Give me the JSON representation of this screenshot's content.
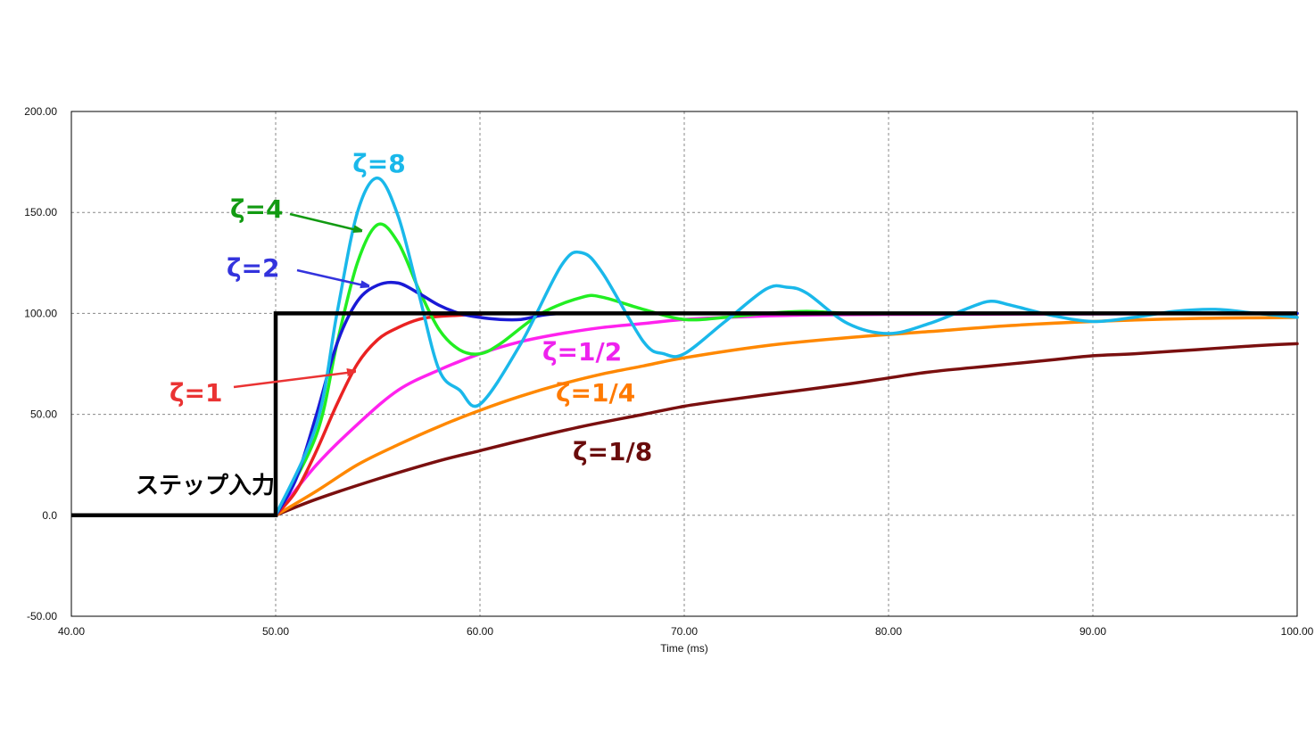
{
  "chart_data": {
    "type": "line",
    "title": "",
    "xlabel": "Time (ms)",
    "ylabel": "",
    "xlim": [
      40,
      100
    ],
    "ylim": [
      -50,
      200
    ],
    "x_ticks": [
      "40.00",
      "50.00",
      "60.00",
      "70.00",
      "80.00",
      "90.00",
      "100.00"
    ],
    "y_ticks": [
      "200.00",
      "150.00",
      "100.00",
      "50.00",
      "0.0",
      "-50.00"
    ],
    "grid": true,
    "step_input": {
      "label": "ステップ入力",
      "color": "#000000",
      "points": [
        [
          40,
          0
        ],
        [
          50,
          0
        ],
        [
          50,
          100
        ],
        [
          100,
          100
        ]
      ]
    },
    "series": [
      {
        "name": "ζ=8",
        "color": "#1ab8ea",
        "points": [
          [
            50,
            0
          ],
          [
            52,
            45
          ],
          [
            53,
            100
          ],
          [
            54,
            150
          ],
          [
            55,
            167
          ],
          [
            56,
            148
          ],
          [
            57,
            110
          ],
          [
            58,
            72
          ],
          [
            59,
            62
          ],
          [
            60,
            55
          ],
          [
            62,
            85
          ],
          [
            64,
            124
          ],
          [
            65,
            130
          ],
          [
            66,
            120
          ],
          [
            68,
            86
          ],
          [
            69,
            80
          ],
          [
            70,
            80
          ],
          [
            72,
            96
          ],
          [
            74,
            112
          ],
          [
            75,
            113
          ],
          [
            76,
            110
          ],
          [
            78,
            95
          ],
          [
            80,
            90
          ],
          [
            82,
            95
          ],
          [
            84,
            103
          ],
          [
            85,
            106
          ],
          [
            86,
            104
          ],
          [
            88,
            99
          ],
          [
            90,
            96
          ],
          [
            92,
            98
          ],
          [
            94,
            101
          ],
          [
            96,
            102
          ],
          [
            98,
            100
          ],
          [
            100,
            98
          ]
        ]
      },
      {
        "name": "ζ=4",
        "color": "#22ee22",
        "points": [
          [
            50,
            0
          ],
          [
            52,
            40
          ],
          [
            53,
            85
          ],
          [
            54,
            125
          ],
          [
            55,
            144
          ],
          [
            56,
            135
          ],
          [
            57,
            112
          ],
          [
            58,
            92
          ],
          [
            59,
            82
          ],
          [
            60,
            80
          ],
          [
            61,
            85
          ],
          [
            63,
            100
          ],
          [
            65,
            108
          ],
          [
            66,
            108
          ],
          [
            68,
            102
          ],
          [
            70,
            97
          ],
          [
            72,
            98
          ],
          [
            74,
            100
          ],
          [
            76,
            101
          ],
          [
            78,
            100
          ],
          [
            80,
            100
          ],
          [
            100,
            100
          ]
        ]
      },
      {
        "name": "ζ=2",
        "color": "#1a1ad6",
        "points": [
          [
            50,
            0
          ],
          [
            51,
            18
          ],
          [
            52,
            50
          ],
          [
            53,
            85
          ],
          [
            54,
            106
          ],
          [
            55,
            114
          ],
          [
            56,
            115
          ],
          [
            57,
            110
          ],
          [
            58,
            104
          ],
          [
            59,
            100
          ],
          [
            60,
            98
          ],
          [
            61,
            97
          ],
          [
            62,
            97
          ],
          [
            63,
            99
          ],
          [
            64,
            100
          ],
          [
            65,
            100
          ],
          [
            100,
            100
          ]
        ]
      },
      {
        "name": "ζ=1",
        "color": "#ea2222",
        "points": [
          [
            50,
            0
          ],
          [
            51,
            12
          ],
          [
            52,
            32
          ],
          [
            53,
            55
          ],
          [
            54,
            75
          ],
          [
            55,
            87
          ],
          [
            56,
            93
          ],
          [
            57,
            97
          ],
          [
            58,
            98.5
          ],
          [
            60,
            99.5
          ],
          [
            62,
            100
          ],
          [
            100,
            100
          ]
        ]
      },
      {
        "name": "ζ=1/2",
        "color": "#ff22ee",
        "points": [
          [
            50,
            0
          ],
          [
            52,
            25
          ],
          [
            54,
            45
          ],
          [
            56,
            62
          ],
          [
            58,
            72
          ],
          [
            60,
            80
          ],
          [
            62,
            86
          ],
          [
            64,
            90
          ],
          [
            66,
            93
          ],
          [
            68,
            95
          ],
          [
            70,
            97
          ],
          [
            72,
            98
          ],
          [
            75,
            99
          ],
          [
            80,
            99.5
          ],
          [
            100,
            100
          ]
        ]
      },
      {
        "name": "ζ=1/4",
        "color": "#ff8800",
        "points": [
          [
            50,
            0
          ],
          [
            52,
            12
          ],
          [
            54,
            25
          ],
          [
            56,
            35
          ],
          [
            58,
            44
          ],
          [
            60,
            52
          ],
          [
            62,
            59
          ],
          [
            64,
            65
          ],
          [
            66,
            70
          ],
          [
            68,
            74
          ],
          [
            70,
            78
          ],
          [
            74,
            84
          ],
          [
            78,
            88
          ],
          [
            82,
            91
          ],
          [
            86,
            94
          ],
          [
            90,
            96
          ],
          [
            95,
            97.5
          ],
          [
            100,
            98
          ]
        ]
      },
      {
        "name": "ζ=1/8",
        "color": "#7a0f0f",
        "points": [
          [
            50,
            0
          ],
          [
            52,
            8
          ],
          [
            55,
            18
          ],
          [
            58,
            27
          ],
          [
            60,
            32
          ],
          [
            62,
            37
          ],
          [
            65,
            44
          ],
          [
            68,
            50
          ],
          [
            70,
            54
          ],
          [
            72,
            57
          ],
          [
            75,
            61
          ],
          [
            78,
            65
          ],
          [
            80,
            68
          ],
          [
            82,
            71
          ],
          [
            85,
            74
          ],
          [
            88,
            77
          ],
          [
            90,
            79
          ],
          [
            92,
            80
          ],
          [
            95,
            82
          ],
          [
            98,
            84
          ],
          [
            100,
            85
          ]
        ]
      }
    ],
    "annotations": [
      {
        "text": "ζ=8",
        "color": "#1ab8ea"
      },
      {
        "text": "ζ=4",
        "color": "#129a12"
      },
      {
        "text": "ζ=2",
        "color": "#3333dd"
      },
      {
        "text": "ζ=1",
        "color": "#ea3333"
      },
      {
        "text": "ζ=1/2",
        "color": "#ee22ee"
      },
      {
        "text": "ζ=1/4",
        "color": "#ff7a00"
      },
      {
        "text": "ζ=1/8",
        "color": "#6a0c0c"
      }
    ]
  }
}
